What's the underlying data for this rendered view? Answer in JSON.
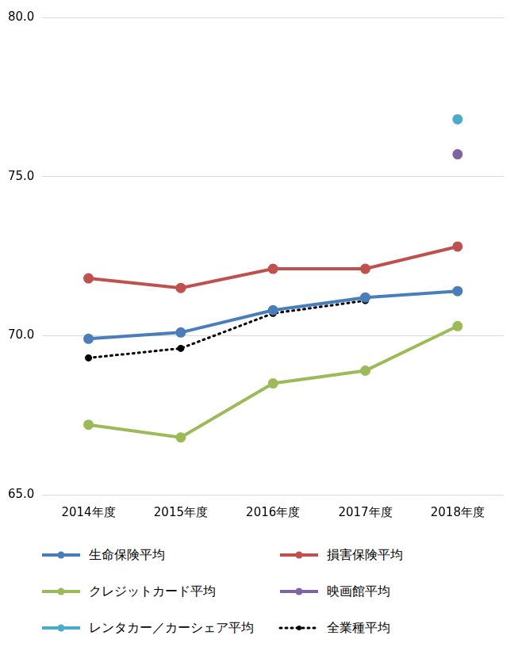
{
  "chart_data": {
    "type": "line",
    "categories": [
      "2014年度",
      "2015年度",
      "2016年度",
      "2017年度",
      "2018年度"
    ],
    "series": [
      {
        "name": "生命保険平均",
        "color": "#4a7ebb",
        "marker": "circle",
        "line_style": "solid",
        "values": [
          69.9,
          70.1,
          70.8,
          71.2,
          71.4
        ]
      },
      {
        "name": "損害保険平均",
        "color": "#c0504d",
        "marker": "circle",
        "line_style": "solid",
        "values": [
          71.8,
          71.5,
          72.1,
          72.1,
          72.8
        ]
      },
      {
        "name": "クレジットカード平均",
        "color": "#9bbb59",
        "marker": "circle",
        "line_style": "solid",
        "values": [
          67.2,
          66.8,
          68.5,
          68.9,
          70.3
        ]
      },
      {
        "name": "映画館平均",
        "color": "#8064a2",
        "marker": "circle",
        "line_style": "solid",
        "values": [
          null,
          null,
          null,
          null,
          75.7
        ]
      },
      {
        "name": "レンタカー／カーシェア平均",
        "color": "#4bacc6",
        "marker": "circle",
        "line_style": "solid",
        "values": [
          null,
          null,
          null,
          null,
          76.8
        ]
      },
      {
        "name": "全業種平均",
        "color": "#000000",
        "marker": "circle",
        "line_style": "dotted",
        "values": [
          69.3,
          69.6,
          70.7,
          71.1,
          null
        ]
      }
    ],
    "ylim": [
      65,
      80
    ],
    "yticks": [
      {
        "value": 65,
        "label": "65.0"
      },
      {
        "value": 70,
        "label": "70.0"
      },
      {
        "value": 75,
        "label": "75.0"
      },
      {
        "value": 80,
        "label": "80.0"
      }
    ],
    "grid": true,
    "legend": "bottom"
  }
}
